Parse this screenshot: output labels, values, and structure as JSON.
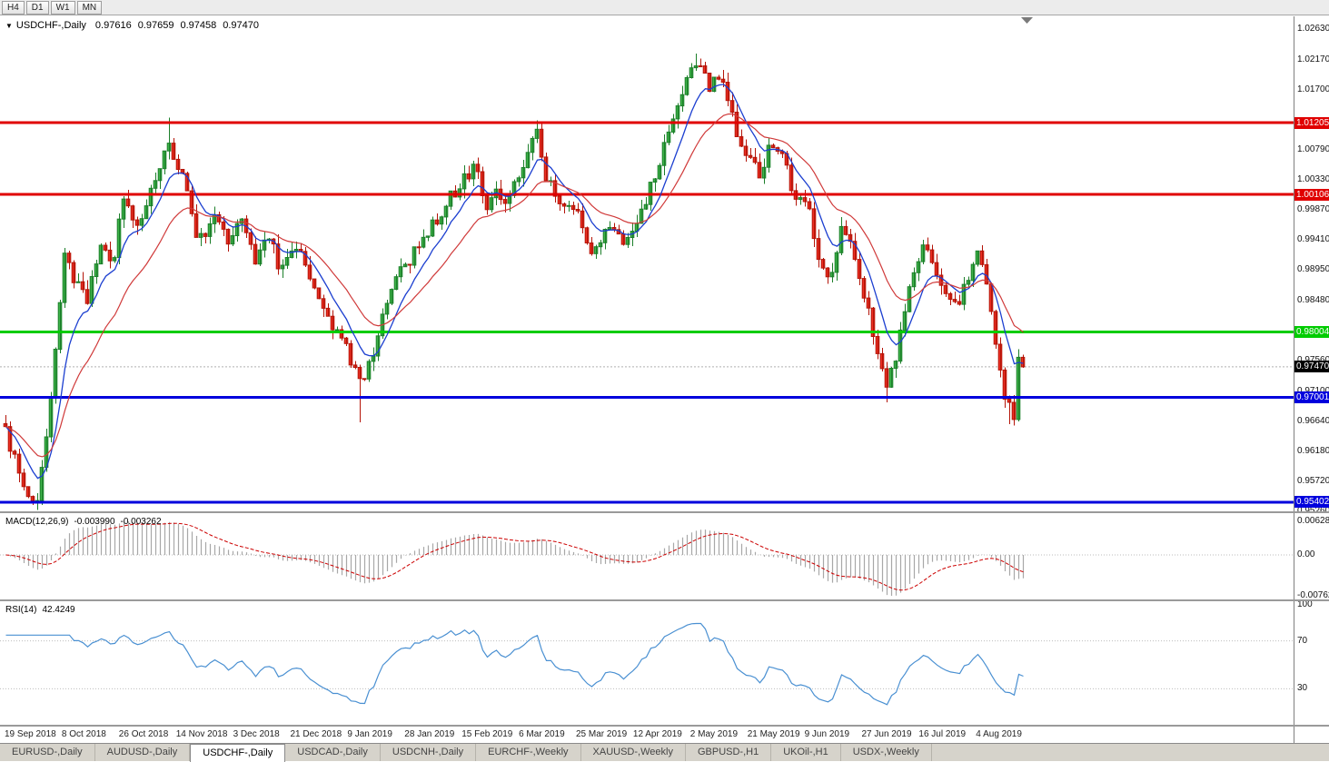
{
  "toolbar": {
    "timeframes": [
      "H4",
      "D1",
      "W1",
      "MN"
    ]
  },
  "chart_header": {
    "expand_icon": "▼",
    "symbol_period": "USDCHF-,Daily",
    "open": "0.97616",
    "high": "0.97659",
    "low": "0.97458",
    "close": "0.97470"
  },
  "price_axis": {
    "labels": [
      "1.02630",
      "1.02170",
      "1.01700",
      "1.00790",
      "1.00330",
      "0.99870",
      "0.99410",
      "0.98950",
      "0.98480",
      "0.97560",
      "0.97100",
      "0.96640",
      "0.96180",
      "0.95720",
      "0.95260"
    ]
  },
  "levels": [
    {
      "price": 1.01205,
      "label": "1.01205",
      "color": "#e00000",
      "width": 3
    },
    {
      "price": 1.00106,
      "label": "1.00106",
      "color": "#e00000",
      "width": 3
    },
    {
      "price": 0.98004,
      "label": "0.98004",
      "color": "#00cc00",
      "width": 3
    },
    {
      "price": 0.97001,
      "label": "0.97001",
      "color": "#0000dd",
      "width": 3
    },
    {
      "price": 0.95402,
      "label": "0.95402",
      "color": "#0000dd",
      "width": 3
    }
  ],
  "current_price": {
    "value": 0.9747,
    "label": "0.97470",
    "color": "#000000"
  },
  "colors": {
    "up_fill": "#3fb54a",
    "up_stroke": "#1c7f2a",
    "down_fill": "#ef3024",
    "down_stroke": "#b41408",
    "ma_fast": "#1c3fd0",
    "ma_slow": "#d03a3a",
    "macd_histogram": "#a8a8a8",
    "macd_signal": "#cc0000",
    "rsi_line": "#4a90d2"
  },
  "indicators": {
    "macd": {
      "title": "MACD(12,26,9)",
      "value_main": "-0.003990",
      "value_signal": "-0.003262",
      "axis": [
        "0.006286",
        "0.00",
        "-0.00762"
      ]
    },
    "rsi": {
      "title": "RSI(14)",
      "value": "42.4249",
      "axis": [
        "100",
        "70",
        "30"
      ],
      "levels": [
        70,
        30
      ]
    }
  },
  "date_axis": {
    "labels": [
      "19 Sep 2018",
      "8 Oct 2018",
      "26 Oct 2018",
      "14 Nov 2018",
      "3 Dec 2018",
      "21 Dec 2018",
      "9 Jan 2019",
      "28 Jan 2019",
      "15 Feb 2019",
      "6 Mar 2019",
      "25 Mar 2019",
      "12 Apr 2019",
      "2 May 2019",
      "21 May 2019",
      "9 Jun 2019",
      "27 Jun 2019",
      "16 Jul 2019",
      "4 Aug 2019"
    ]
  },
  "tabs": [
    {
      "label": "EURUSD-,Daily",
      "active": false
    },
    {
      "label": "AUDUSD-,Daily",
      "active": false
    },
    {
      "label": "USDCHF-,Daily",
      "active": true
    },
    {
      "label": "USDCAD-,Daily",
      "active": false
    },
    {
      "label": "USDCNH-,Daily",
      "active": false
    },
    {
      "label": "EURCHF-,Weekly",
      "active": false
    },
    {
      "label": "XAUUSD-,Weekly",
      "active": false
    },
    {
      "label": "GBPUSD-,H1",
      "active": false
    },
    {
      "label": "UKOil-,H1",
      "active": false
    },
    {
      "label": "USDX-,Weekly",
      "active": false
    }
  ],
  "chart_data": {
    "type": "candlestick",
    "symbol": "USDCHF-",
    "timeframe": "Daily",
    "candle_count": 225,
    "seed": 20190814,
    "ma_fast": 8,
    "ma_slow": 20,
    "macd_params": {
      "fast": 12,
      "slow": 26,
      "signal": 9
    },
    "rsi_period": 14,
    "price_range": {
      "top": 1.0283,
      "bottom": 0.9526
    },
    "price_path": [
      [
        0.0,
        0.9648
      ],
      [
        0.01,
        0.96
      ],
      [
        0.022,
        0.956
      ],
      [
        0.032,
        0.9545
      ],
      [
        0.045,
        0.97
      ],
      [
        0.058,
        0.9915
      ],
      [
        0.068,
        0.988
      ],
      [
        0.08,
        0.9845
      ],
      [
        0.095,
        0.994
      ],
      [
        0.105,
        0.99
      ],
      [
        0.116,
        1.0005
      ],
      [
        0.13,
        0.996
      ],
      [
        0.148,
        1.004
      ],
      [
        0.16,
        1.0095
      ],
      [
        0.168,
        1.006
      ],
      [
        0.178,
        1.002
      ],
      [
        0.19,
        0.9935
      ],
      [
        0.205,
        0.9985
      ],
      [
        0.218,
        0.994
      ],
      [
        0.231,
        0.9975
      ],
      [
        0.245,
        0.9905
      ],
      [
        0.258,
        0.9955
      ],
      [
        0.27,
        0.9895
      ],
      [
        0.289,
        0.9935
      ],
      [
        0.3,
        0.9875
      ],
      [
        0.318,
        0.982
      ],
      [
        0.335,
        0.9775
      ],
      [
        0.349,
        0.9715
      ],
      [
        0.36,
        0.976
      ],
      [
        0.375,
        0.9855
      ],
      [
        0.39,
        0.9895
      ],
      [
        0.404,
        0.9925
      ],
      [
        0.42,
        0.9965
      ],
      [
        0.435,
        1.0
      ],
      [
        0.45,
        1.0035
      ],
      [
        0.462,
        1.0055
      ],
      [
        0.472,
        0.9985
      ],
      [
        0.482,
        1.002
      ],
      [
        0.495,
        1.0
      ],
      [
        0.51,
        1.006
      ],
      [
        0.522,
        1.0105
      ],
      [
        0.532,
        1.003
      ],
      [
        0.545,
        1.0
      ],
      [
        0.56,
        0.9985
      ],
      [
        0.578,
        0.992
      ],
      [
        0.592,
        0.996
      ],
      [
        0.605,
        0.9935
      ],
      [
        0.62,
        0.9965
      ],
      [
        0.636,
        1.003
      ],
      [
        0.652,
        1.0105
      ],
      [
        0.668,
        1.0185
      ],
      [
        0.68,
        1.0215
      ],
      [
        0.693,
        1.0175
      ],
      [
        0.705,
        1.019
      ],
      [
        0.718,
        1.011
      ],
      [
        0.73,
        1.0065
      ],
      [
        0.744,
        1.004
      ],
      [
        0.751,
        1.0095
      ],
      [
        0.762,
        1.007
      ],
      [
        0.775,
        1.0015
      ],
      [
        0.79,
        0.9985
      ],
      [
        0.8,
        0.9905
      ],
      [
        0.809,
        0.9875
      ],
      [
        0.822,
        0.9965
      ],
      [
        0.832,
        0.994
      ],
      [
        0.845,
        0.9855
      ],
      [
        0.858,
        0.976
      ],
      [
        0.867,
        0.9715
      ],
      [
        0.878,
        0.9785
      ],
      [
        0.89,
        0.987
      ],
      [
        0.902,
        0.9935
      ],
      [
        0.912,
        0.9905
      ],
      [
        0.924,
        0.9855
      ],
      [
        0.936,
        0.9835
      ],
      [
        0.948,
        0.9895
      ],
      [
        0.956,
        0.9935
      ],
      [
        0.966,
        0.987
      ],
      [
        0.975,
        0.976
      ],
      [
        0.984,
        0.9695
      ],
      [
        0.991,
        0.9672
      ],
      [
        0.996,
        0.9762
      ],
      [
        1.0,
        0.9747
      ]
    ],
    "spikes": [
      {
        "f": 0.03,
        "type": "low",
        "price": 0.9528
      },
      {
        "f": 0.16,
        "type": "high",
        "price": 1.0128
      },
      {
        "f": 0.349,
        "type": "low",
        "price": 0.9662
      },
      {
        "f": 0.522,
        "type": "high",
        "price": 1.0124
      },
      {
        "f": 0.68,
        "type": "high",
        "price": 1.0226
      },
      {
        "f": 0.867,
        "type": "low",
        "price": 0.9693
      },
      {
        "f": 0.988,
        "type": "low",
        "price": 0.9659
      },
      {
        "f": 1.0,
        "type": "exact",
        "open": 0.97616,
        "high": 0.97659,
        "low": 0.97458,
        "close": 0.9747
      }
    ]
  }
}
